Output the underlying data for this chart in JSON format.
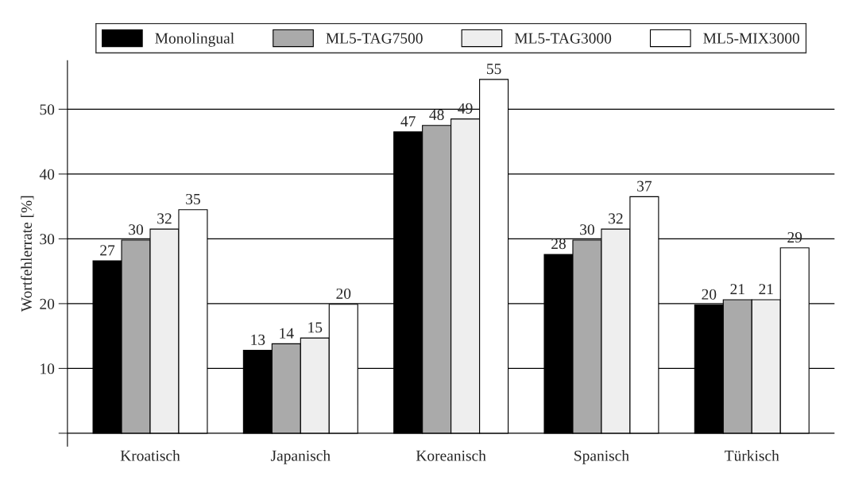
{
  "chart_data": {
    "type": "bar",
    "ylabel": "Wortfehlerrate [%]",
    "categories": [
      "Kroatisch",
      "Japanisch",
      "Koreanisch",
      "Spanisch",
      "Türkisch"
    ],
    "series": [
      {
        "name": "Monolingual",
        "color": "#000000",
        "values": [
          26.6,
          12.8,
          46.5,
          27.6,
          19.8
        ],
        "value_labels": [
          "27",
          "13",
          "47",
          "28",
          "20"
        ]
      },
      {
        "name": "ML5-TAG7500",
        "color": "#aaaaaa",
        "values": [
          29.8,
          13.8,
          47.5,
          29.8,
          20.6
        ],
        "value_labels": [
          "30",
          "14",
          "48",
          "30",
          "21"
        ]
      },
      {
        "name": "ML5-TAG3000",
        "color": "#eeeeee",
        "values": [
          31.5,
          14.7,
          48.5,
          31.5,
          20.6
        ],
        "value_labels": [
          "32",
          "15",
          "49",
          "32",
          "21"
        ]
      },
      {
        "name": "ML5-MIX3000",
        "color": "#ffffff",
        "values": [
          34.5,
          19.9,
          54.6,
          36.5,
          28.6
        ],
        "value_labels": [
          "35",
          "20",
          "55",
          "37",
          "29"
        ]
      }
    ],
    "ylim": [
      -2,
      57.5
    ],
    "yticks": [
      {
        "value": 0,
        "label": null
      },
      10,
      20,
      30,
      40,
      50
    ],
    "grid": "y",
    "legend": "top"
  }
}
